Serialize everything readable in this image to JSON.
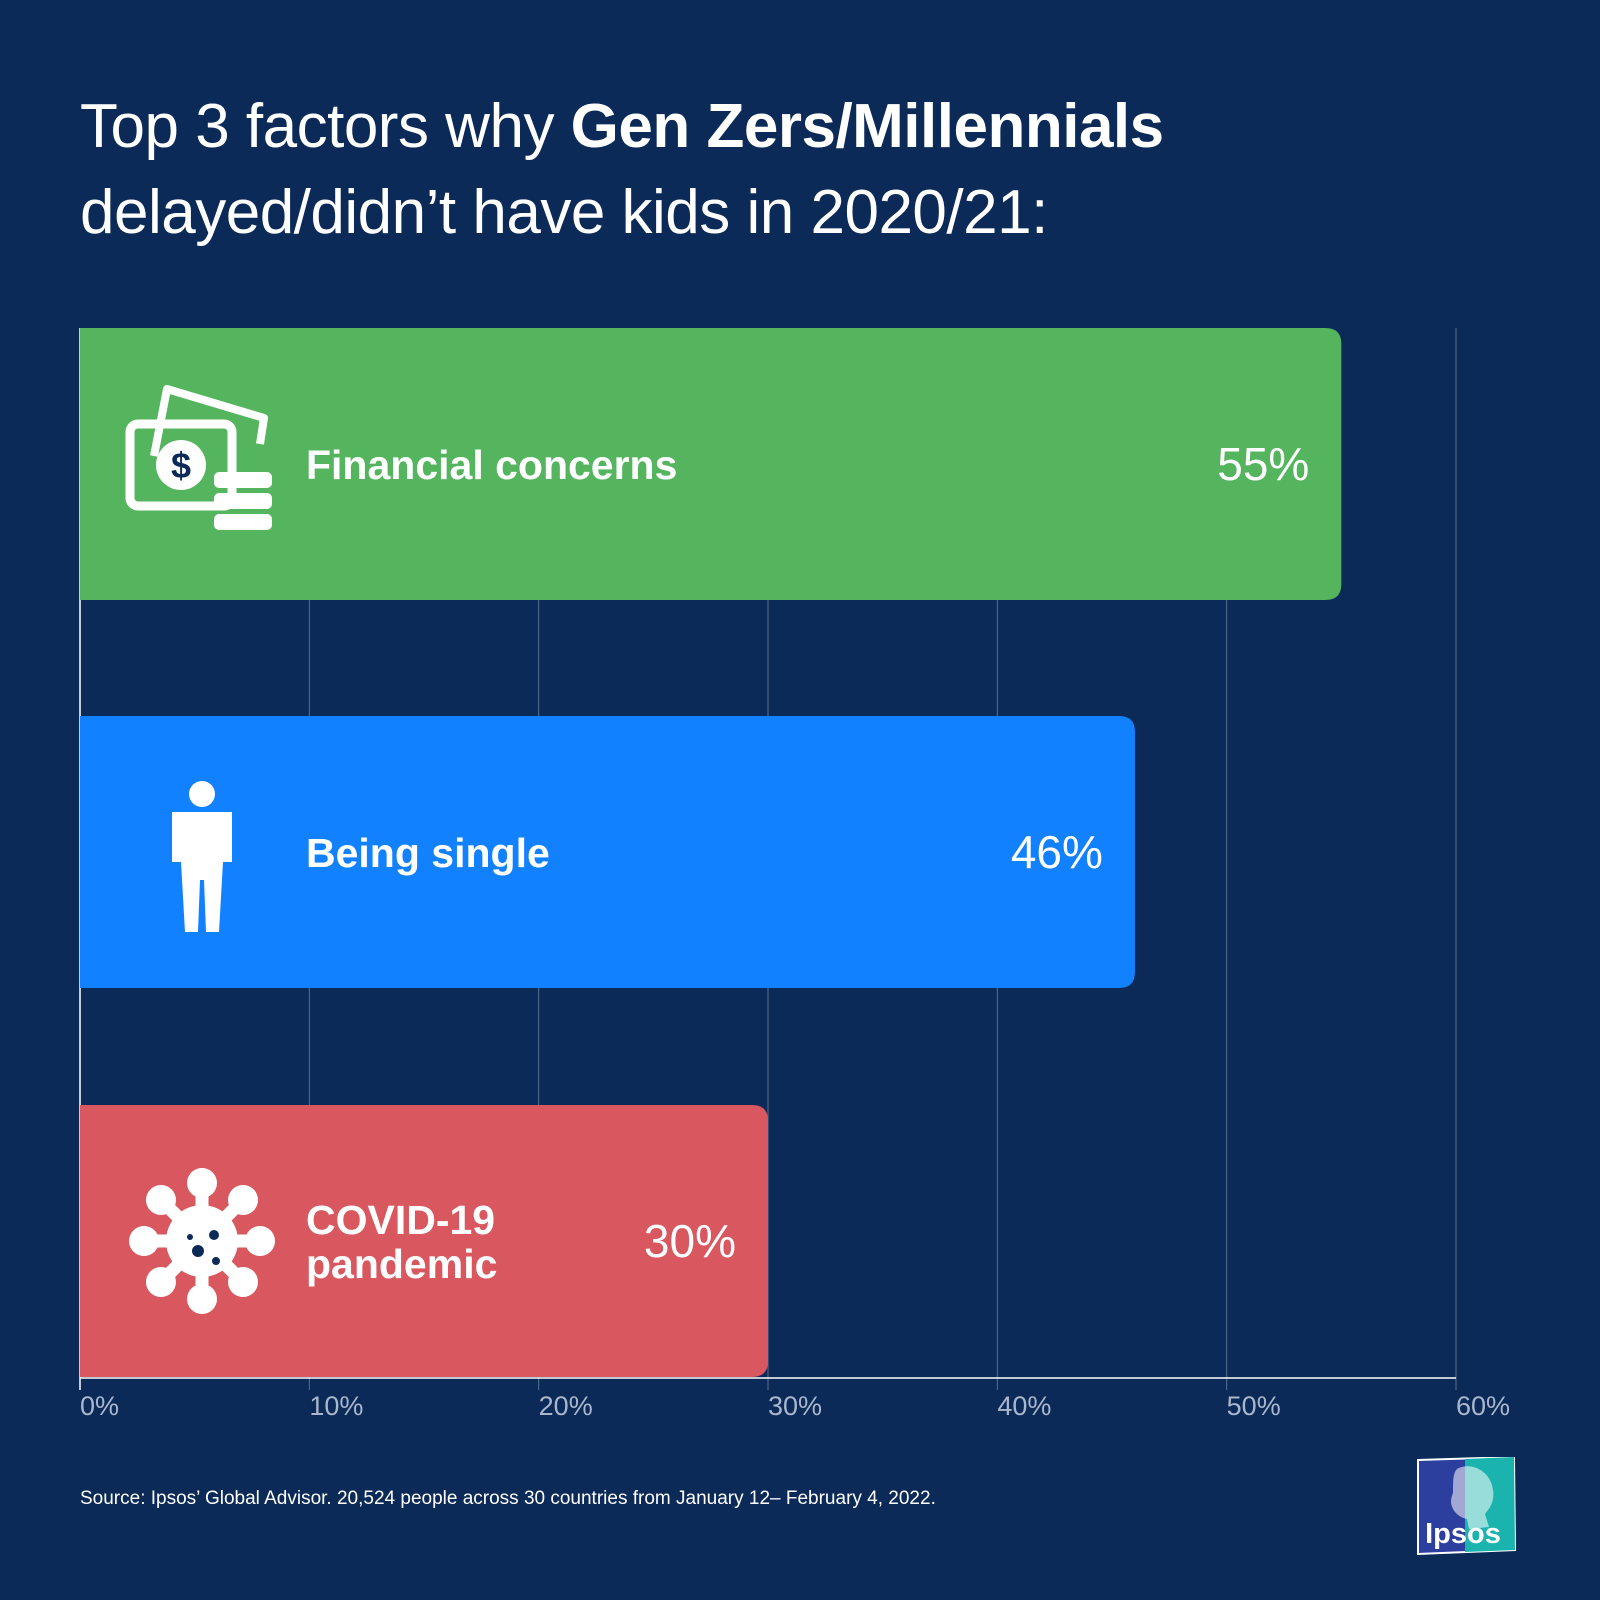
{
  "title": {
    "regular_part": "Top 3 factors why ",
    "bold_part": "Gen Zers/Millennials",
    "line2": "delayed/didn’t have kids in 2020/21:"
  },
  "chart_data": {
    "type": "bar",
    "orientation": "horizontal",
    "categories": [
      "Financial concerns",
      "Being single",
      "COVID-19 pandemic"
    ],
    "category_lines": [
      [
        "Financial concerns"
      ],
      [
        "Being single"
      ],
      [
        "COVID-19",
        "pandemic"
      ]
    ],
    "values": [
      55,
      46,
      30
    ],
    "value_labels": [
      "55%",
      "46%",
      "30%"
    ],
    "icons": [
      "money-icon",
      "person-icon",
      "virus-icon"
    ],
    "colors": [
      "#55b55e",
      "#1281ff",
      "#d9575f"
    ],
    "xlim": [
      0,
      60
    ],
    "ticks": [
      0,
      10,
      20,
      30,
      40,
      50,
      60
    ],
    "tick_labels": [
      "0%",
      "10%",
      "20%",
      "30%",
      "40%",
      "50%",
      "60%"
    ],
    "grid": true,
    "title": "",
    "xlabel": "",
    "ylabel": ""
  },
  "footer": {
    "source": "Source: Ipsos’ Global Advisor. 20,524 people across 30 countries from January 12– February 4, 2022.",
    "logo_text": "Ipsos"
  },
  "colors": {
    "background": "#0b2a58",
    "grid": "#5a6f92",
    "tick_label": "#a9b6cc",
    "logo_blue": "#2d3f9e",
    "logo_teal": "#1bb3ad"
  }
}
